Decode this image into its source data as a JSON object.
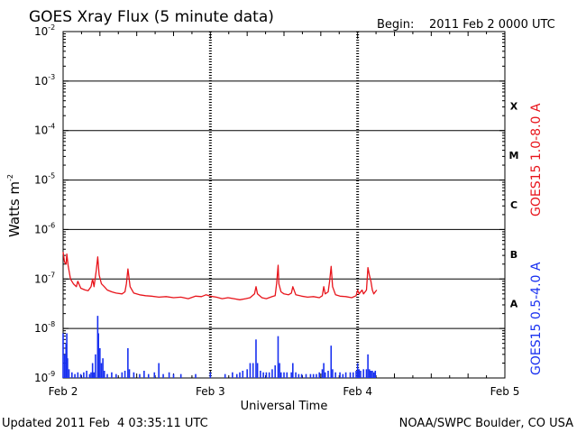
{
  "chart_data": {
    "type": "line",
    "title": "GOES Xray Flux (5 minute data)",
    "begin_label": "Begin:",
    "begin_value": "2011 Feb 2 0000 UTC",
    "xlabel": "Universal Time",
    "ylabel": "Watts m",
    "ylabel_sup": "-2",
    "yscale": "log",
    "ylim": [
      1e-09,
      0.01
    ],
    "xlim": [
      0,
      3
    ],
    "x_unit": "days since 2011 Feb 2 0000 UTC",
    "x_ticks": [
      {
        "value": 0,
        "label": "Feb 2"
      },
      {
        "value": 1,
        "label": "Feb 3"
      },
      {
        "value": 2,
        "label": "Feb 4"
      },
      {
        "value": 3,
        "label": "Feb 5"
      }
    ],
    "y_ticks": [
      {
        "exp": -2,
        "base": "10",
        "sup": "-2"
      },
      {
        "exp": -3,
        "base": "10",
        "sup": "-3"
      },
      {
        "exp": -4,
        "base": "10",
        "sup": "-4"
      },
      {
        "exp": -5,
        "base": "10",
        "sup": "-5"
      },
      {
        "exp": -6,
        "base": "10",
        "sup": "-6"
      },
      {
        "exp": -7,
        "base": "10",
        "sup": "-7"
      },
      {
        "exp": -8,
        "base": "10",
        "sup": "-8"
      },
      {
        "exp": -9,
        "base": "10",
        "sup": "-9"
      }
    ],
    "flare_classes": [
      {
        "label": "X",
        "exp": -3.5
      },
      {
        "label": "M",
        "exp": -4.5
      },
      {
        "label": "C",
        "exp": -5.5
      },
      {
        "label": "B",
        "exp": -6.5
      },
      {
        "label": "A",
        "exp": -7.5
      }
    ],
    "grid": "horizontal lines at each decade, dotted day markers",
    "series": [
      {
        "name": "GOES15 1.0-8.0 A",
        "color": "#e8141b",
        "points": [
          [
            0.0,
            3.5e-07
          ],
          [
            0.01,
            2.2e-07
          ],
          [
            0.02,
            2e-07
          ],
          [
            0.025,
            3.2e-07
          ],
          [
            0.035,
            1.8e-07
          ],
          [
            0.05,
            1e-07
          ],
          [
            0.07,
            8e-08
          ],
          [
            0.09,
            7e-08
          ],
          [
            0.1,
            9e-08
          ],
          [
            0.12,
            6.5e-08
          ],
          [
            0.15,
            6e-08
          ],
          [
            0.17,
            5.8e-08
          ],
          [
            0.19,
            7e-08
          ],
          [
            0.2,
            1e-07
          ],
          [
            0.21,
            7e-08
          ],
          [
            0.225,
            1.5e-07
          ],
          [
            0.235,
            2.8e-07
          ],
          [
            0.245,
            1.2e-07
          ],
          [
            0.26,
            8e-08
          ],
          [
            0.28,
            7e-08
          ],
          [
            0.3,
            6e-08
          ],
          [
            0.33,
            5.5e-08
          ],
          [
            0.36,
            5.2e-08
          ],
          [
            0.4,
            5e-08
          ],
          [
            0.42,
            5.5e-08
          ],
          [
            0.43,
            8e-08
          ],
          [
            0.44,
            1.6e-07
          ],
          [
            0.455,
            7e-08
          ],
          [
            0.48,
            5.2e-08
          ],
          [
            0.52,
            4.8e-08
          ],
          [
            0.56,
            4.6e-08
          ],
          [
            0.6,
            4.5e-08
          ],
          [
            0.65,
            4.3e-08
          ],
          [
            0.7,
            4.4e-08
          ],
          [
            0.75,
            4.2e-08
          ],
          [
            0.8,
            4.3e-08
          ],
          [
            0.85,
            4e-08
          ],
          [
            0.9,
            4.5e-08
          ],
          [
            0.94,
            4.4e-08
          ],
          [
            0.97,
            4.8e-08
          ],
          [
            1.0,
            4.5e-08
          ],
          [
            1.04,
            4.3e-08
          ],
          [
            1.08,
            4e-08
          ],
          [
            1.12,
            4.2e-08
          ],
          [
            1.16,
            4e-08
          ],
          [
            1.2,
            3.8e-08
          ],
          [
            1.24,
            4e-08
          ],
          [
            1.27,
            4.2e-08
          ],
          [
            1.3,
            5e-08
          ],
          [
            1.31,
            7e-08
          ],
          [
            1.32,
            5e-08
          ],
          [
            1.35,
            4.2e-08
          ],
          [
            1.38,
            4e-08
          ],
          [
            1.42,
            4.4e-08
          ],
          [
            1.44,
            4.6e-08
          ],
          [
            1.45,
            8e-08
          ],
          [
            1.46,
            1.9e-07
          ],
          [
            1.465,
            8e-08
          ],
          [
            1.48,
            5.5e-08
          ],
          [
            1.5,
            5e-08
          ],
          [
            1.53,
            4.8e-08
          ],
          [
            1.55,
            5.2e-08
          ],
          [
            1.56,
            7e-08
          ],
          [
            1.58,
            4.8e-08
          ],
          [
            1.62,
            4.5e-08
          ],
          [
            1.66,
            4.3e-08
          ],
          [
            1.7,
            4.4e-08
          ],
          [
            1.74,
            4.2e-08
          ],
          [
            1.76,
            4.6e-08
          ],
          [
            1.77,
            7e-08
          ],
          [
            1.78,
            5e-08
          ],
          [
            1.8,
            5.5e-08
          ],
          [
            1.81,
            9e-08
          ],
          [
            1.82,
            1.8e-07
          ],
          [
            1.83,
            7e-08
          ],
          [
            1.85,
            4.8e-08
          ],
          [
            1.88,
            4.5e-08
          ],
          [
            1.92,
            4.4e-08
          ],
          [
            1.96,
            4.2e-08
          ],
          [
            1.99,
            4.6e-08
          ],
          [
            2.0,
            6e-08
          ],
          [
            2.01,
            5e-08
          ],
          [
            2.03,
            6e-08
          ],
          [
            2.04,
            5e-08
          ],
          [
            2.06,
            6e-08
          ],
          [
            2.07,
            1.7e-07
          ],
          [
            2.08,
            1.2e-07
          ],
          [
            2.09,
            9e-08
          ],
          [
            2.1,
            6e-08
          ],
          [
            2.11,
            5e-08
          ],
          [
            2.12,
            5.5e-08
          ],
          [
            2.13,
            6e-08
          ]
        ]
      },
      {
        "name": "GOES15 0.5-4.0 A",
        "color": "#1830f0",
        "baseline": 1e-09,
        "spikes": [
          [
            0.0,
            8e-09
          ],
          [
            0.01,
            3e-09
          ],
          [
            0.02,
            5e-09
          ],
          [
            0.025,
            8e-09
          ],
          [
            0.03,
            2.5e-09
          ],
          [
            0.04,
            1.5e-09
          ],
          [
            0.06,
            1.3e-09
          ],
          [
            0.08,
            1.2e-09
          ],
          [
            0.1,
            1.3e-09
          ],
          [
            0.12,
            1.2e-09
          ],
          [
            0.14,
            1.3e-09
          ],
          [
            0.16,
            1.4e-09
          ],
          [
            0.18,
            1.2e-09
          ],
          [
            0.19,
            1.3e-09
          ],
          [
            0.2,
            2e-09
          ],
          [
            0.21,
            1.3e-09
          ],
          [
            0.22,
            3e-09
          ],
          [
            0.235,
            1.8e-08
          ],
          [
            0.24,
            8e-09
          ],
          [
            0.25,
            4e-09
          ],
          [
            0.26,
            2e-09
          ],
          [
            0.27,
            2.5e-09
          ],
          [
            0.28,
            1.4e-09
          ],
          [
            0.3,
            1.2e-09
          ],
          [
            0.33,
            1.3e-09
          ],
          [
            0.36,
            1.2e-09
          ],
          [
            0.4,
            1.3e-09
          ],
          [
            0.42,
            1.4e-09
          ],
          [
            0.44,
            4e-09
          ],
          [
            0.45,
            1.5e-09
          ],
          [
            0.48,
            1.3e-09
          ],
          [
            0.52,
            1.2e-09
          ],
          [
            0.55,
            1.4e-09
          ],
          [
            0.58,
            1.2e-09
          ],
          [
            0.62,
            1.3e-09
          ],
          [
            0.65,
            2e-09
          ],
          [
            0.68,
            1.2e-09
          ],
          [
            0.72,
            1.3e-09
          ],
          [
            0.75,
            1.2e-09
          ],
          [
            0.8,
            1.2e-09
          ],
          [
            0.9,
            1.2e-09
          ],
          [
            1.0,
            1.3e-09
          ],
          [
            1.1,
            1.2e-09
          ],
          [
            1.15,
            1.3e-09
          ],
          [
            1.18,
            1.2e-09
          ],
          [
            1.2,
            1.3e-09
          ],
          [
            1.22,
            1.4e-09
          ],
          [
            1.25,
            1.5e-09
          ],
          [
            1.27,
            2e-09
          ],
          [
            1.29,
            2e-09
          ],
          [
            1.31,
            6e-09
          ],
          [
            1.32,
            2e-09
          ],
          [
            1.34,
            1.4e-09
          ],
          [
            1.36,
            1.3e-09
          ],
          [
            1.38,
            1.3e-09
          ],
          [
            1.4,
            1.3e-09
          ],
          [
            1.42,
            1.5e-09
          ],
          [
            1.44,
            1.8e-09
          ],
          [
            1.46,
            7e-09
          ],
          [
            1.47,
            2e-09
          ],
          [
            1.48,
            1.3e-09
          ],
          [
            1.5,
            1.3e-09
          ],
          [
            1.52,
            1.3e-09
          ],
          [
            1.55,
            1.3e-09
          ],
          [
            1.56,
            2e-09
          ],
          [
            1.58,
            1.3e-09
          ],
          [
            1.6,
            1.2e-09
          ],
          [
            1.62,
            1.2e-09
          ],
          [
            1.65,
            1.2e-09
          ],
          [
            1.68,
            1.2e-09
          ],
          [
            1.7,
            1.2e-09
          ],
          [
            1.72,
            1.2e-09
          ],
          [
            1.74,
            1.3e-09
          ],
          [
            1.76,
            1.5e-09
          ],
          [
            1.77,
            2e-09
          ],
          [
            1.78,
            1.3e-09
          ],
          [
            1.8,
            1.4e-09
          ],
          [
            1.82,
            4.5e-09
          ],
          [
            1.83,
            1.5e-09
          ],
          [
            1.85,
            1.3e-09
          ],
          [
            1.88,
            1.3e-09
          ],
          [
            1.9,
            1.2e-09
          ],
          [
            1.92,
            1.3e-09
          ],
          [
            1.95,
            1.3e-09
          ],
          [
            1.97,
            1.3e-09
          ],
          [
            1.99,
            1.4e-09
          ],
          [
            2.0,
            2e-09
          ],
          [
            2.01,
            1.5e-09
          ],
          [
            2.02,
            1.4e-09
          ],
          [
            2.04,
            1.5e-09
          ],
          [
            2.06,
            1.5e-09
          ],
          [
            2.07,
            3e-09
          ],
          [
            2.08,
            1.5e-09
          ],
          [
            2.09,
            1.4e-09
          ],
          [
            2.1,
            1.4e-09
          ],
          [
            2.11,
            1.3e-09
          ],
          [
            2.12,
            1.4e-09
          ]
        ]
      }
    ]
  },
  "footer": {
    "updated": "Updated 2011 Feb  4 03:35:11 UTC",
    "credit": "NOAA/SWPC Boulder, CO USA"
  }
}
